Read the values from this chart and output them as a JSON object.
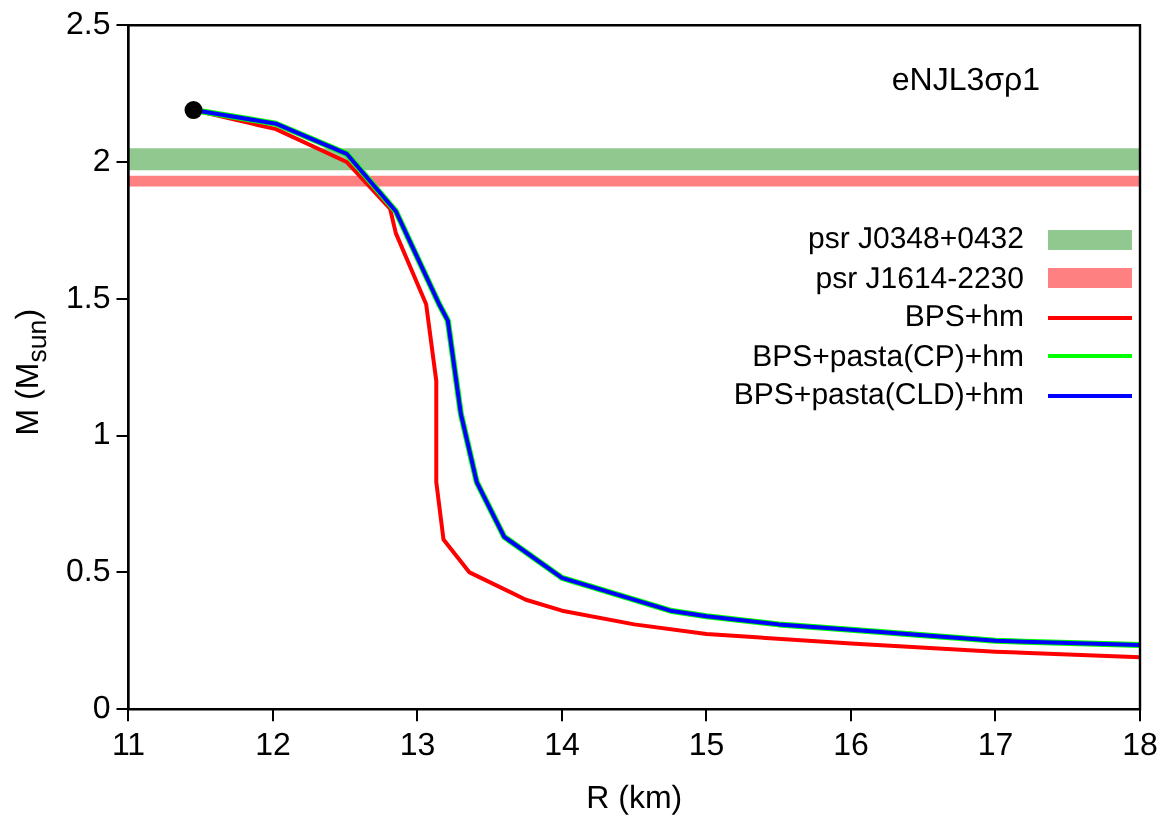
{
  "chart_data": {
    "type": "line",
    "title": "eNJL3σρ1",
    "xlabel": "R (km)",
    "ylabel": "M (M$_{sun}$)",
    "xlim": [
      11,
      18
    ],
    "xticks": [
      11,
      12,
      13,
      14,
      15,
      16,
      17,
      18
    ],
    "ylim": [
      0,
      2.5
    ],
    "yticks": [
      0,
      0.5,
      1,
      1.5,
      2,
      2.5
    ],
    "grid": false,
    "legend": "right",
    "line_style": "solid",
    "marker": "none",
    "bands": [
      {
        "axis": "y",
        "from": 1.97,
        "to": 2.05,
        "label": "psr J0348+0432",
        "color": "#90c890"
      },
      {
        "axis": "y",
        "from": 1.91,
        "to": 1.95,
        "label": "psr J1614-2230",
        "color": "#ff8080"
      }
    ],
    "series": [
      {
        "name": "BPS+hm",
        "color": "#ff0000",
        "x": [
          11.45,
          12.02,
          12.51,
          12.81,
          12.85,
          13.06,
          13.13,
          13.13,
          13.18,
          13.36,
          13.75,
          14.0,
          14.5,
          15.0,
          16.0,
          17.0,
          18.0
        ],
        "values": [
          2.19,
          2.12,
          2.0,
          1.83,
          1.74,
          1.48,
          1.2,
          0.83,
          0.62,
          0.5,
          0.4,
          0.36,
          0.31,
          0.275,
          0.24,
          0.21,
          0.19
        ]
      },
      {
        "name": "BPS+pasta(CP)+hm",
        "color": "#00ff00",
        "x": [
          11.45,
          12.02,
          12.51,
          12.85,
          13.15,
          13.21,
          13.3,
          13.41,
          13.6,
          14.0,
          14.75,
          15.0,
          15.5,
          16.0,
          17.0,
          18.0
        ],
        "values": [
          2.19,
          2.14,
          2.03,
          1.82,
          1.48,
          1.42,
          1.08,
          0.83,
          0.63,
          0.48,
          0.36,
          0.34,
          0.31,
          0.29,
          0.25,
          0.235
        ]
      },
      {
        "name": "BPS+pasta(CLD)+hm",
        "color": "#0000ff",
        "x": [
          11.45,
          12.02,
          12.51,
          12.85,
          13.15,
          13.21,
          13.3,
          13.41,
          13.6,
          14.0,
          14.75,
          15.0,
          15.5,
          16.0,
          17.0,
          18.0
        ],
        "values": [
          2.19,
          2.14,
          2.03,
          1.82,
          1.48,
          1.42,
          1.08,
          0.83,
          0.63,
          0.48,
          0.36,
          0.34,
          0.31,
          0.29,
          0.25,
          0.235
        ]
      },
      {
        "type": "scatter",
        "color": "#000000",
        "marker": "circle",
        "x": [
          11.45
        ],
        "values": [
          2.19
        ]
      }
    ]
  }
}
